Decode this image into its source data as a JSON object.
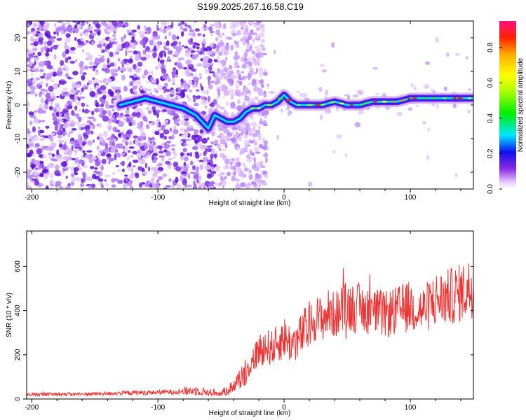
{
  "title": "S199.2025.267.16.58.C19",
  "chart_data": [
    {
      "type": "heatmap",
      "name": "spectrogram",
      "title": "S199.2025.267.16.58.C19",
      "xlabel": "Height of straight line (km)",
      "ylabel": "Frequency (Hz)",
      "xlim": [
        -204,
        150
      ],
      "ylim": [
        -25,
        25
      ],
      "xticks": [
        -200,
        -100,
        0,
        100
      ],
      "xtick_labels": [
        "-200",
        "-100",
        "0",
        "100"
      ],
      "yticks": [
        -20,
        -10,
        0,
        10,
        20
      ],
      "ytick_labels": [
        "-20",
        "-10",
        "0",
        "10",
        "20"
      ],
      "ridge": {
        "x": [
          -130,
          -120,
          -110,
          -100,
          -90,
          -80,
          -70,
          -60,
          -55,
          -50,
          -45,
          -40,
          -35,
          -30,
          -25,
          -20,
          -15,
          -10,
          -5,
          0,
          5,
          10,
          20,
          30,
          40,
          50,
          60,
          70,
          80,
          90,
          100,
          110,
          120,
          130,
          140,
          150
        ],
        "y": [
          0,
          1,
          2,
          1,
          0,
          -1,
          -3,
          -7,
          -3,
          -4,
          -5,
          -5,
          -4,
          -2,
          -1,
          -1,
          0,
          0,
          1,
          3,
          1,
          0,
          0,
          0,
          1,
          0,
          0,
          1,
          1,
          1,
          2,
          2,
          2,
          2,
          2,
          2
        ]
      },
      "colorbar": {
        "label": "Normalized spectral amplitude",
        "range": [
          0,
          0.95
        ],
        "ticks": [
          0.0,
          0.2,
          0.4,
          0.6,
          0.8
        ],
        "tick_labels": [
          "0.0",
          "0.2",
          "0.4",
          "0.6",
          "0.8"
        ]
      }
    },
    {
      "type": "line",
      "name": "snr",
      "xlabel": "Height of straight line (km)",
      "ylabel": "SNR (10 * v/v)",
      "xlim": [
        -204,
        150
      ],
      "ylim": [
        0,
        760
      ],
      "xticks": [
        -200,
        -100,
        0,
        100
      ],
      "xtick_labels": [
        "-200",
        "-100",
        "0",
        "100"
      ],
      "yticks": [
        0,
        200,
        400,
        600
      ],
      "ytick_labels": [
        "0",
        "200",
        "400",
        "600"
      ],
      "color": "#ee3333",
      "series": [
        {
          "name": "SNR",
          "x": [
            -204,
            -180,
            -160,
            -140,
            -120,
            -100,
            -90,
            -80,
            -70,
            -60,
            -50,
            -45,
            -40,
            -35,
            -30,
            -25,
            -20,
            -15,
            -10,
            -5,
            0,
            5,
            10,
            15,
            20,
            25,
            30,
            35,
            40,
            45,
            50,
            60,
            70,
            80,
            90,
            100,
            110,
            120,
            130,
            140,
            150
          ],
          "y": [
            20,
            22,
            22,
            25,
            28,
            30,
            32,
            35,
            38,
            30,
            25,
            40,
            60,
            90,
            130,
            170,
            220,
            240,
            230,
            250,
            280,
            250,
            260,
            300,
            330,
            370,
            360,
            390,
            380,
            400,
            420,
            410,
            400,
            380,
            400,
            420,
            400,
            450,
            460,
            480,
            510
          ]
        }
      ]
    }
  ]
}
